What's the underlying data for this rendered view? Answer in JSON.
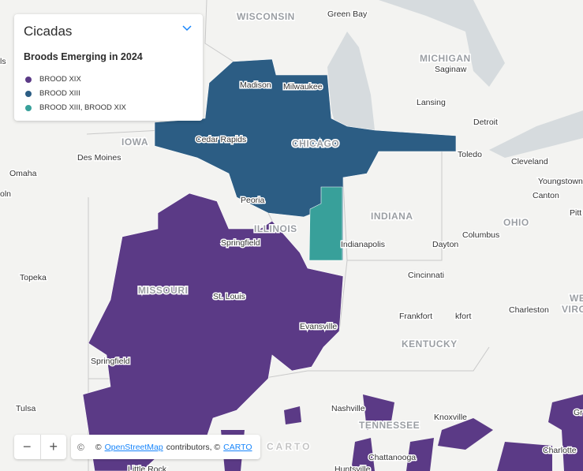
{
  "panel": {
    "title": "Cicadas",
    "subtitle": "Broods Emerging in 2024",
    "legend": [
      {
        "label": "BROOD XIX",
        "color": "#5b3a86"
      },
      {
        "label": "BROOD XIII",
        "color": "#2c5d84"
      },
      {
        "label": "BROOD XIII, BROOD XIX",
        "color": "#38a09a"
      }
    ]
  },
  "map": {
    "labels": [
      "WISCONSIN",
      "Green Bay",
      "MICHIGAN",
      "Saginaw",
      "Madison",
      "Milwaukee",
      "Lansing",
      "Detroit",
      "IOWA",
      "Cedar Rapids",
      "CHICAGO",
      "Toledo",
      "Des Moines",
      "Omaha",
      "Cleveland",
      "Youngstown",
      "Canton",
      "Peoria",
      "INDIANA",
      "OHIO",
      "Pitt",
      "ILLINOIS",
      "Springfield",
      "Indianapolis",
      "Columbus",
      "Dayton",
      "Topeka",
      "Cincinnati",
      "MISSOURI",
      "St. Louis",
      "WE",
      "VIRO",
      "Charleston",
      "Frankfort",
      "kfort",
      "Evansville",
      "KENTUCKY",
      "Springfield",
      "Tulsa",
      "Nashville",
      "Knoxville",
      "TENNESSEE",
      "Chattanooga",
      "Charlotte",
      "Little Rock",
      "Huntsville",
      "ls",
      "oln",
      "Gr"
    ],
    "watermark": "CARTO"
  },
  "controls": {
    "zoom_out": "−",
    "zoom_in": "+"
  },
  "attribution": {
    "icon": "©",
    "prefix": "©",
    "osm": "OpenStreetMap",
    "middle": "contributors, ©",
    "carto": "CARTO"
  }
}
